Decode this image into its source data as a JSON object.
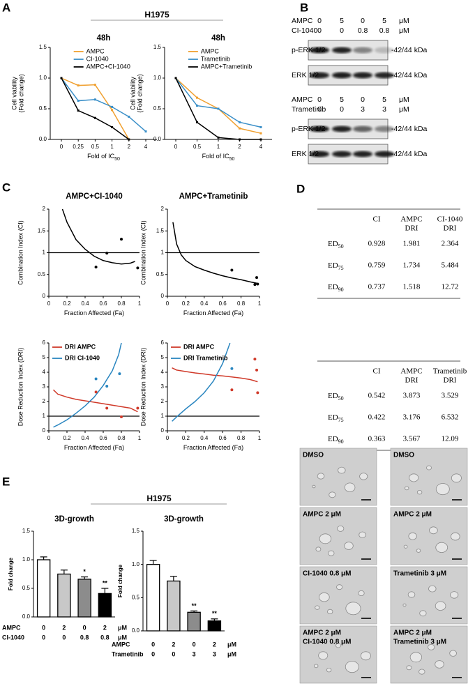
{
  "panel_labels": [
    "A",
    "B",
    "C",
    "D",
    "E"
  ],
  "headers": [
    "H1975",
    "H1975"
  ],
  "chart_data": [
    {
      "type": "line",
      "title": "48h",
      "y_label": [
        "Cell viability",
        "(Fold change)"
      ],
      "x_label": "Fold of IC",
      "x_label_sub": "50",
      "categories": [
        0,
        0.25,
        0.5,
        1,
        2,
        4
      ],
      "ylim": [
        0,
        1.5
      ],
      "yticks": [
        {
          "value": 0,
          "label": "0.0"
        },
        {
          "value": 0.5,
          "label": "0.5"
        },
        {
          "value": 1,
          "label": "1.0"
        },
        {
          "value": 1.5,
          "label": "1.5"
        }
      ],
      "legend": "upper right",
      "series": [
        {
          "name": "AMPC",
          "color": "#f0a030",
          "values": [
            1.0,
            0.88,
            0.89,
            0.48,
            0.0,
            null
          ]
        },
        {
          "name": "CI-1040",
          "color": "#3a8fc8",
          "values": [
            1.0,
            0.63,
            0.65,
            0.53,
            0.37,
            0.13
          ]
        },
        {
          "name": "AMPC+CI-1040",
          "color": "#000000",
          "values": [
            1.0,
            0.47,
            0.35,
            0.2,
            0.0,
            null
          ]
        }
      ]
    },
    {
      "type": "line",
      "title": "48h",
      "y_label": [
        "Cell viability",
        "(Fold change)"
      ],
      "x_label": "Fold of IC",
      "x_label_sub": "50",
      "categories": [
        0,
        0.5,
        1,
        2,
        4
      ],
      "ylim": [
        0,
        1.5
      ],
      "yticks": [
        {
          "value": 0,
          "label": "0.0"
        },
        {
          "value": 0.5,
          "label": "0.5"
        },
        {
          "value": 1,
          "label": "1.0"
        },
        {
          "value": 1.5,
          "label": "1.5"
        }
      ],
      "legend": "upper right",
      "series": [
        {
          "name": "AMPC",
          "color": "#f0a030",
          "values": [
            1.0,
            0.68,
            0.5,
            0.18,
            0.1
          ]
        },
        {
          "name": "Trametinib",
          "color": "#3a8fc8",
          "values": [
            1.0,
            0.55,
            0.5,
            0.28,
            0.2
          ]
        },
        {
          "name": "AMPC+Trametinib",
          "color": "#000000",
          "values": [
            1.0,
            0.28,
            0.03,
            0.0,
            0.0
          ]
        }
      ]
    },
    {
      "type": "line",
      "title": "AMPC+CI-1040",
      "y_label": "Combination Index (CI)",
      "x_label": "Fraction Affected (Fa)",
      "xlim": [
        0,
        1
      ],
      "xticks": [
        0,
        0.2,
        0.4,
        0.6,
        0.8,
        1
      ],
      "ylim": [
        0,
        2
      ],
      "yticks": [
        0,
        0.5,
        1,
        1.5,
        2
      ],
      "reference_line": 1,
      "series": [
        {
          "color": "#000000",
          "style": "line",
          "x": [
            0.15,
            0.2,
            0.3,
            0.4,
            0.5,
            0.6,
            0.7,
            0.8,
            0.9,
            0.95
          ],
          "values": [
            2.0,
            1.7,
            1.3,
            1.08,
            0.92,
            0.82,
            0.77,
            0.74,
            0.76,
            0.8
          ]
        },
        {
          "color": "#000000",
          "style": "points",
          "x": [
            0.52,
            0.64,
            0.8,
            0.98
          ],
          "values": [
            0.67,
            0.99,
            1.31,
            0.65
          ]
        }
      ]
    },
    {
      "type": "line",
      "title": "AMPC+Trametinib",
      "y_label": "Combination Index (CI)",
      "x_label": "Fraction Affected (Fa)",
      "xlim": [
        0,
        1
      ],
      "xticks": [
        0,
        0.2,
        0.4,
        0.6,
        0.8,
        1
      ],
      "ylim": [
        0,
        2
      ],
      "yticks": [
        0,
        0.5,
        1,
        1.5,
        2
      ],
      "reference_line": 1,
      "series": [
        {
          "color": "#000000",
          "style": "line",
          "x": [
            0.06,
            0.1,
            0.15,
            0.2,
            0.3,
            0.4,
            0.5,
            0.6,
            0.7,
            0.8,
            0.9,
            0.97
          ],
          "values": [
            1.7,
            1.2,
            0.95,
            0.82,
            0.68,
            0.6,
            0.53,
            0.47,
            0.42,
            0.38,
            0.33,
            0.3
          ]
        },
        {
          "color": "#000000",
          "style": "points",
          "x": [
            0.7,
            0.95,
            0.97,
            0.98
          ],
          "values": [
            0.6,
            0.27,
            0.43,
            0.28
          ]
        }
      ]
    },
    {
      "type": "line",
      "y_label": "Dose Reduction Index (DRI)",
      "x_label": "Fraction Affected (Fa)",
      "xlim": [
        0,
        1
      ],
      "xticks": [
        0,
        0.2,
        0.4,
        0.6,
        0.8,
        1
      ],
      "ylim": [
        0,
        6
      ],
      "yticks": [
        0,
        1,
        2,
        3,
        4,
        5,
        6
      ],
      "reference_line": 1,
      "legend": "upper left",
      "series": [
        {
          "name": "DRI AMPC",
          "color": "#d03a2a",
          "style": "line",
          "x": [
            0.05,
            0.1,
            0.2,
            0.3,
            0.4,
            0.5,
            0.6,
            0.7,
            0.8,
            0.9,
            0.98
          ],
          "values": [
            2.8,
            2.5,
            2.3,
            2.15,
            2.05,
            1.95,
            1.85,
            1.75,
            1.65,
            1.55,
            1.3
          ]
        },
        {
          "name": "DRI CI-1040",
          "color": "#2a86c0",
          "style": "line",
          "x": [
            0.05,
            0.1,
            0.2,
            0.3,
            0.4,
            0.5,
            0.6,
            0.7,
            0.77,
            0.8
          ],
          "values": [
            0.25,
            0.4,
            0.75,
            1.2,
            1.7,
            2.3,
            3.1,
            4.1,
            5.2,
            6.0
          ]
        },
        {
          "color": "#d03a2a",
          "style": "points",
          "x": [
            0.52,
            0.64,
            0.8,
            0.98
          ],
          "values": [
            2.65,
            1.55,
            0.95,
            1.55
          ]
        },
        {
          "color": "#2a86c0",
          "style": "points",
          "x": [
            0.52,
            0.64,
            0.78
          ],
          "values": [
            3.55,
            3.05,
            3.9
          ]
        }
      ]
    },
    {
      "type": "line",
      "y_label": "Dose Reduction Index (DRI)",
      "x_label": "Fraction Affected (Fa)",
      "xlim": [
        0,
        1
      ],
      "xticks": [
        0,
        0.2,
        0.4,
        0.6,
        0.8,
        1
      ],
      "ylim": [
        0,
        6
      ],
      "yticks": [
        0,
        1,
        2,
        3,
        4,
        5,
        6
      ],
      "reference_line": 1,
      "legend": "upper left",
      "series": [
        {
          "name": "DRI AMPC",
          "color": "#d03a2a",
          "style": "line",
          "x": [
            0.05,
            0.1,
            0.2,
            0.3,
            0.4,
            0.5,
            0.6,
            0.7,
            0.8,
            0.9,
            0.98
          ],
          "values": [
            4.3,
            4.15,
            4.05,
            3.95,
            3.88,
            3.8,
            3.75,
            3.68,
            3.6,
            3.5,
            3.35
          ]
        },
        {
          "name": "DRI Trametinib",
          "color": "#2a86c0",
          "style": "line",
          "x": [
            0.05,
            0.1,
            0.2,
            0.3,
            0.4,
            0.5,
            0.6,
            0.68
          ],
          "values": [
            0.65,
            0.95,
            1.5,
            2.0,
            2.6,
            3.4,
            4.6,
            6.0
          ]
        },
        {
          "color": "#d03a2a",
          "style": "points",
          "x": [
            0.7,
            0.95,
            0.97,
            0.98
          ],
          "values": [
            2.8,
            4.9,
            4.15,
            2.6
          ]
        },
        {
          "color": "#2a86c0",
          "style": "points",
          "x": [
            0.7
          ],
          "values": [
            4.25
          ]
        }
      ]
    },
    {
      "type": "bar",
      "title": "3D-growth",
      "y_label": "Fold change",
      "ylim": [
        0,
        1.5
      ],
      "yticks": [
        {
          "value": 0,
          "label": "0.0"
        },
        {
          "value": 0.5,
          "label": "0.5"
        },
        {
          "value": 1,
          "label": "1.0"
        },
        {
          "value": 1.5,
          "label": "1.5"
        }
      ],
      "values": [
        1.0,
        0.75,
        0.66,
        0.41
      ],
      "errors": [
        0.05,
        0.07,
        0.04,
        0.09
      ],
      "colors": [
        "#ffffff",
        "#c8c8c8",
        "#8c8c8c",
        "#000000"
      ],
      "annotations": [
        null,
        null,
        "*",
        "**"
      ],
      "conditions": [
        {
          "name": "AMPC",
          "values": [
            0,
            2,
            0,
            2
          ],
          "unit": "μM"
        },
        {
          "name": "CI-1040",
          "values": [
            0,
            0,
            0.8,
            0.8
          ],
          "unit": "μM"
        }
      ]
    },
    {
      "type": "bar",
      "title": "3D-growth",
      "y_label": "Fold change",
      "ylim": [
        0,
        1.5
      ],
      "yticks": [
        {
          "value": 0,
          "label": "0.0"
        },
        {
          "value": 0.5,
          "label": "0.5"
        },
        {
          "value": 1,
          "label": "1.0"
        },
        {
          "value": 1.5,
          "label": "1.5"
        }
      ],
      "values": [
        1.0,
        0.75,
        0.28,
        0.15
      ],
      "errors": [
        0.06,
        0.07,
        0.02,
        0.03
      ],
      "colors": [
        "#ffffff",
        "#c8c8c8",
        "#8c8c8c",
        "#000000"
      ],
      "annotations": [
        null,
        null,
        "**",
        "**"
      ],
      "conditions": [
        {
          "name": "AMPC",
          "values": [
            0,
            2,
            0,
            2
          ],
          "unit": "μM"
        },
        {
          "name": "Trametinib",
          "values": [
            0,
            0,
            3,
            3
          ],
          "unit": "μM"
        }
      ]
    }
  ],
  "blots": [
    {
      "conditions": [
        {
          "name": "AMPC",
          "values": [
            0,
            5,
            0,
            5
          ],
          "unit": "μM"
        },
        {
          "name": "CI-1040",
          "values": [
            0,
            0,
            0.8,
            0.8
          ],
          "unit": "μM"
        }
      ],
      "bands": [
        {
          "name": "p-ERK 1/2",
          "size": "-42/44 kDa"
        },
        {
          "name": "ERK 1/2",
          "size": "-42/44 kDa"
        }
      ]
    },
    {
      "conditions": [
        {
          "name": "AMPC",
          "values": [
            0,
            5,
            0,
            5
          ],
          "unit": "μM"
        },
        {
          "name": "Trametinib",
          "values": [
            0,
            0,
            3,
            3
          ],
          "unit": "μM"
        }
      ],
      "bands": [
        {
          "name": "p-ERK 1/2",
          "size": "-42/44 kDa"
        },
        {
          "name": "ERK 1/2",
          "size": "-42/44 kDa"
        }
      ]
    }
  ],
  "tables": [
    {
      "columns": [
        [
          "CI"
        ],
        [
          "AMPC",
          "DRI"
        ],
        [
          "CI-1040",
          "DRI"
        ]
      ],
      "rows": [
        {
          "label": "ED",
          "sub": "50",
          "values": [
            0.928,
            1.981,
            2.364
          ]
        },
        {
          "label": "ED",
          "sub": "75",
          "values": [
            0.759,
            1.734,
            5.484
          ]
        },
        {
          "label": "ED",
          "sub": "90",
          "values": [
            0.737,
            1.518,
            12.72
          ]
        }
      ]
    },
    {
      "columns": [
        [
          "CI"
        ],
        [
          "AMPC",
          "DRI"
        ],
        [
          "Trametinib",
          "DRI"
        ]
      ],
      "rows": [
        {
          "label": "ED",
          "sub": "50",
          "values": [
            0.542,
            3.873,
            3.529
          ]
        },
        {
          "label": "ED",
          "sub": "75",
          "values": [
            0.422,
            3.176,
            6.532
          ]
        },
        {
          "label": "ED",
          "sub": "90",
          "values": [
            0.363,
            3.567,
            12.09
          ]
        }
      ]
    }
  ],
  "micrographs": [
    {
      "label": [
        "DMSO"
      ]
    },
    {
      "label": [
        "DMSO"
      ]
    },
    {
      "label": [
        "AMPC 2 μM"
      ]
    },
    {
      "label": [
        "AMPC 2 μM"
      ]
    },
    {
      "label": [
        "CI-1040 0.8 μM"
      ]
    },
    {
      "label": [
        "Trametinib 3 μM"
      ]
    },
    {
      "label": [
        "AMPC 2 μM",
        "CI-1040 0.8 μM"
      ]
    },
    {
      "label": [
        "AMPC 2 μM",
        "Trametinib 3 μM"
      ]
    }
  ]
}
